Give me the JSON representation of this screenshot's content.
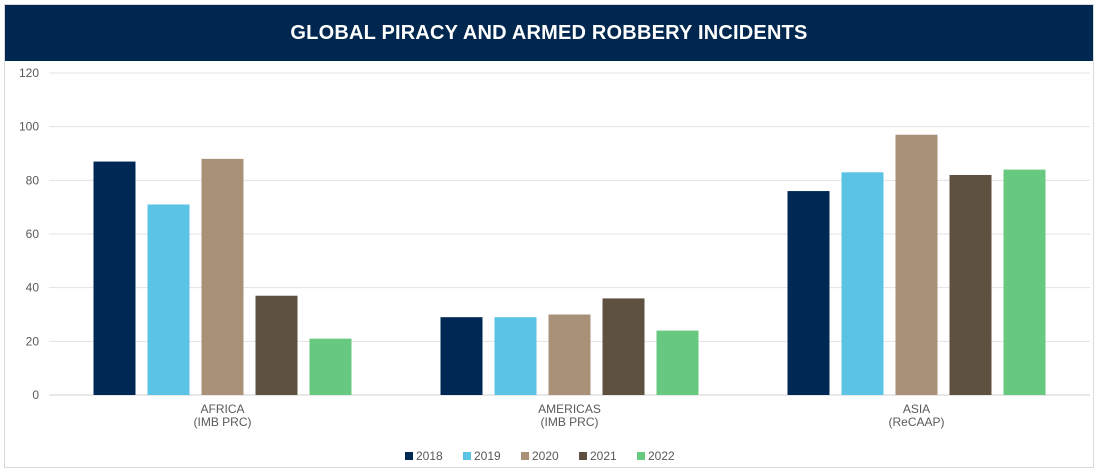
{
  "chart_data": {
    "type": "bar",
    "title": "GLOBAL PIRACY AND ARMED ROBBERY INCIDENTS",
    "categories": [
      [
        "AFRICA",
        "(IMB PRC)"
      ],
      [
        "AMERICAS",
        "(IMB PRC)"
      ],
      [
        "ASIA",
        "(ReCAAP)"
      ]
    ],
    "series": [
      {
        "name": "2018",
        "color": "#002855",
        "values": [
          87,
          29,
          76
        ]
      },
      {
        "name": "2019",
        "color": "#5bc4e4",
        "values": [
          71,
          29,
          83
        ]
      },
      {
        "name": "2020",
        "color": "#a89079",
        "values": [
          88,
          30,
          97
        ]
      },
      {
        "name": "2021",
        "color": "#5e5140",
        "values": [
          37,
          36,
          82
        ]
      },
      {
        "name": "2022",
        "color": "#66c97f",
        "values": [
          21,
          24,
          84
        ]
      }
    ],
    "ylim": [
      0,
      120
    ],
    "yticks": [
      0,
      20,
      40,
      60,
      80,
      100,
      120
    ],
    "grid": true,
    "legend": "bottom-center"
  }
}
